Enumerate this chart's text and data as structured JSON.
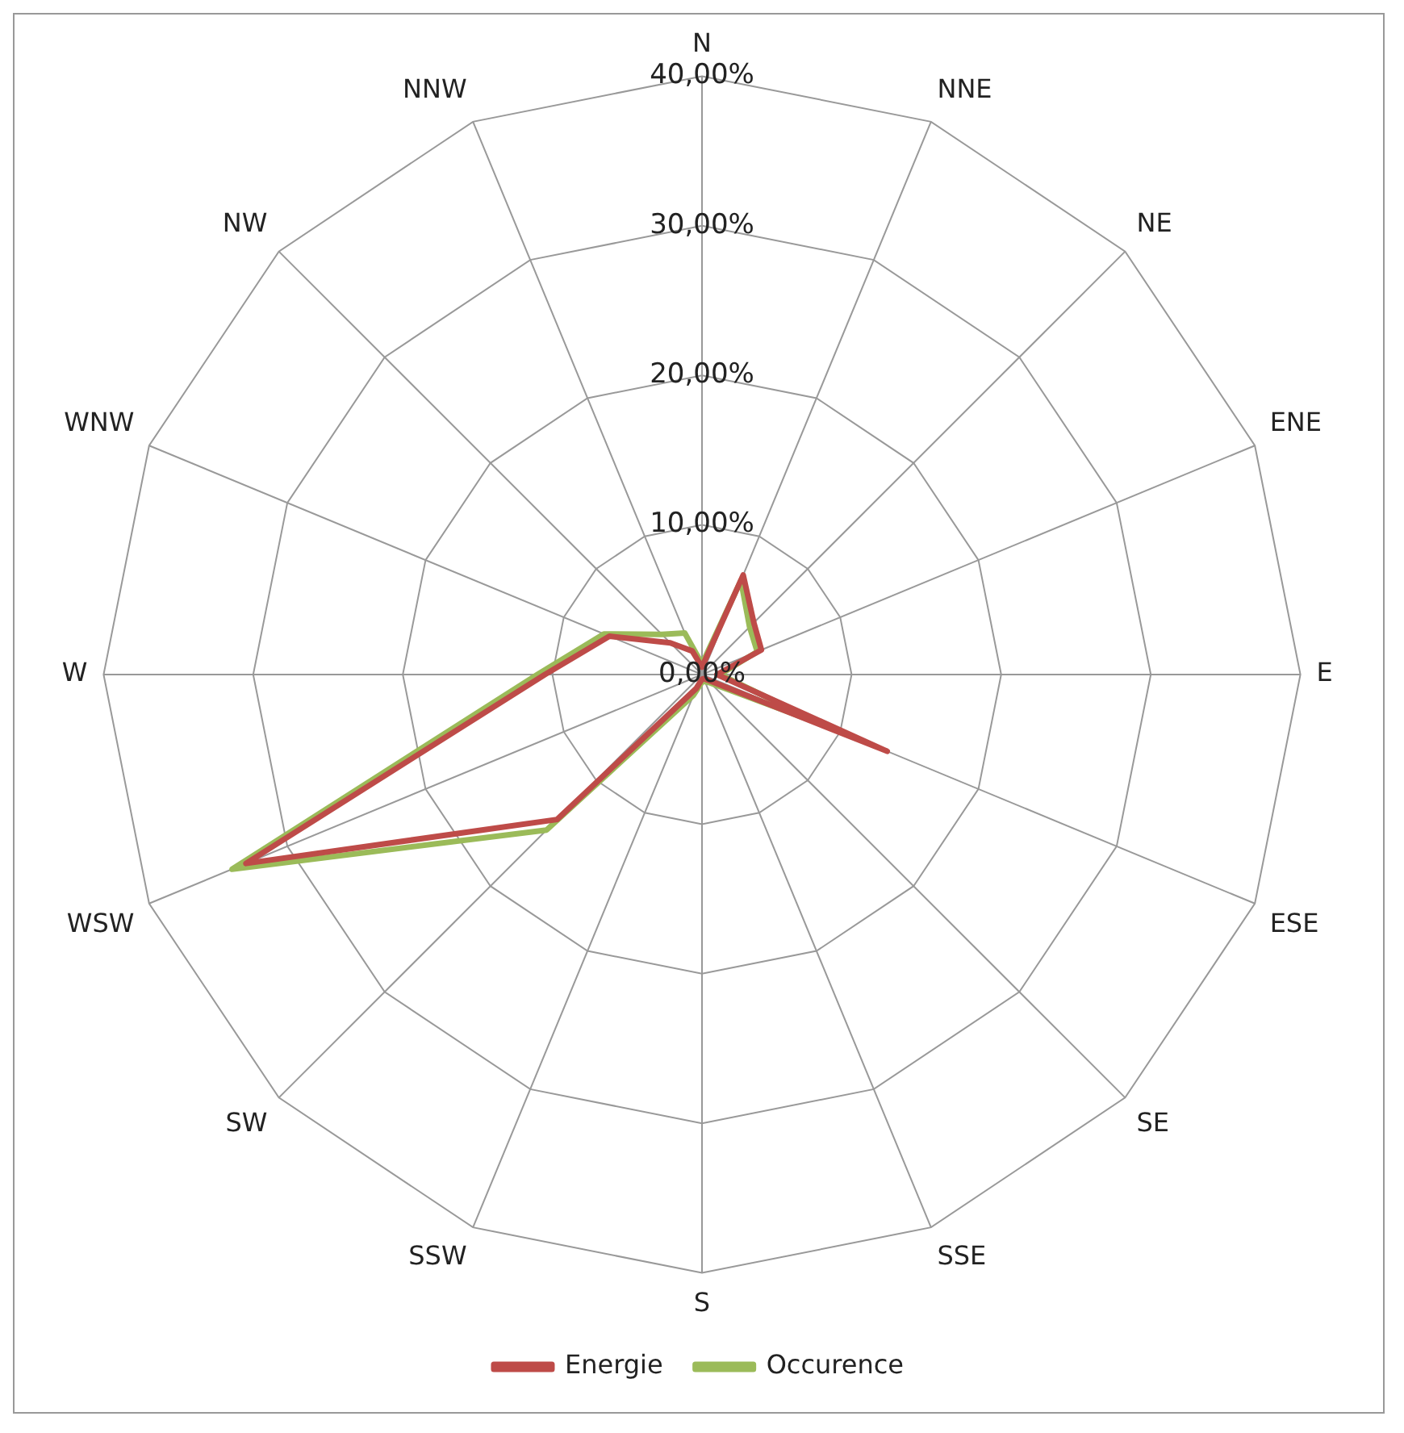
{
  "chart_data": {
    "type": "radar",
    "categories": [
      "N",
      "NNE",
      "NE",
      "ENE",
      "E",
      "ESE",
      "SE",
      "SSE",
      "S",
      "SSW",
      "SW",
      "WSW",
      "W",
      "WNW",
      "NW",
      "NNW"
    ],
    "series": [
      {
        "name": "Energie",
        "color": "#be4b48",
        "values": [
          0.5,
          7.2,
          4.9,
          4.3,
          1,
          13.4,
          0.5,
          0.3,
          0.3,
          1,
          13.7,
          33,
          10.5,
          6.7,
          3,
          1.7
        ]
      },
      {
        "name": "Occurence",
        "color": "#9bbb59",
        "values": [
          0.7,
          6.8,
          4.5,
          4,
          1.2,
          9,
          0.8,
          0.5,
          0.5,
          1.5,
          14.7,
          34,
          11,
          7.1,
          3.8,
          3
        ]
      }
    ],
    "ylim": [
      0,
      40
    ],
    "yticks": [
      {
        "value": 0,
        "label": "0,00%"
      },
      {
        "value": 10,
        "label": "10,00%"
      },
      {
        "value": 20,
        "label": "20,00%"
      },
      {
        "value": 30,
        "label": "30,00%"
      },
      {
        "value": 40,
        "label": "40,00%"
      }
    ],
    "grid": true,
    "legend": "bottom",
    "marker": "none",
    "line_style": "solid"
  }
}
